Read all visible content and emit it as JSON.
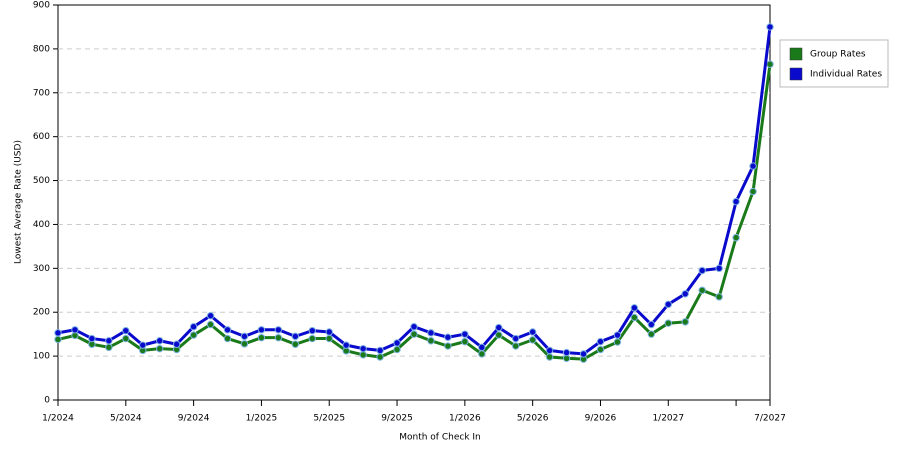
{
  "chart_data": {
    "type": "line",
    "x_label": "Month of Check In",
    "y_label": "Lowest Average Rate (USD)",
    "categories": [
      "1/2024",
      null,
      null,
      null,
      "5/2024",
      null,
      null,
      null,
      "9/2024",
      null,
      null,
      null,
      "1/2025",
      null,
      null,
      null,
      "5/2025",
      null,
      null,
      null,
      "9/2025",
      null,
      null,
      null,
      "1/2026",
      null,
      null,
      null,
      "5/2026",
      null,
      null,
      null,
      "9/2026",
      null,
      null,
      null,
      "1/2027",
      null,
      null,
      null,
      null,
      null,
      "7/2027"
    ],
    "series": [
      {
        "name": "Group Rates",
        "color": "#1a7a1a",
        "values": [
          138,
          147,
          127,
          120,
          140,
          113,
          117,
          115,
          148,
          172,
          140,
          128,
          142,
          142,
          127,
          140,
          140,
          112,
          103,
          98,
          115,
          150,
          135,
          123,
          133,
          105,
          148,
          123,
          137,
          98,
          95,
          93,
          115,
          132,
          188,
          150,
          175,
          178,
          250,
          235,
          370,
          475,
          765
        ]
      },
      {
        "name": "Individual Rates",
        "color": "#0a0acc",
        "values": [
          153,
          160,
          140,
          135,
          158,
          125,
          135,
          127,
          167,
          192,
          160,
          145,
          160,
          160,
          145,
          158,
          155,
          125,
          117,
          113,
          130,
          167,
          153,
          143,
          150,
          120,
          165,
          140,
          155,
          113,
          108,
          105,
          133,
          148,
          210,
          172,
          218,
          242,
          295,
          300,
          452,
          533,
          850
        ]
      }
    ],
    "ylim": [
      0,
      900
    ],
    "yticks": [
      0,
      100,
      200,
      300,
      400,
      500,
      600,
      700,
      800,
      900
    ],
    "grid": true,
    "legend": "right"
  }
}
